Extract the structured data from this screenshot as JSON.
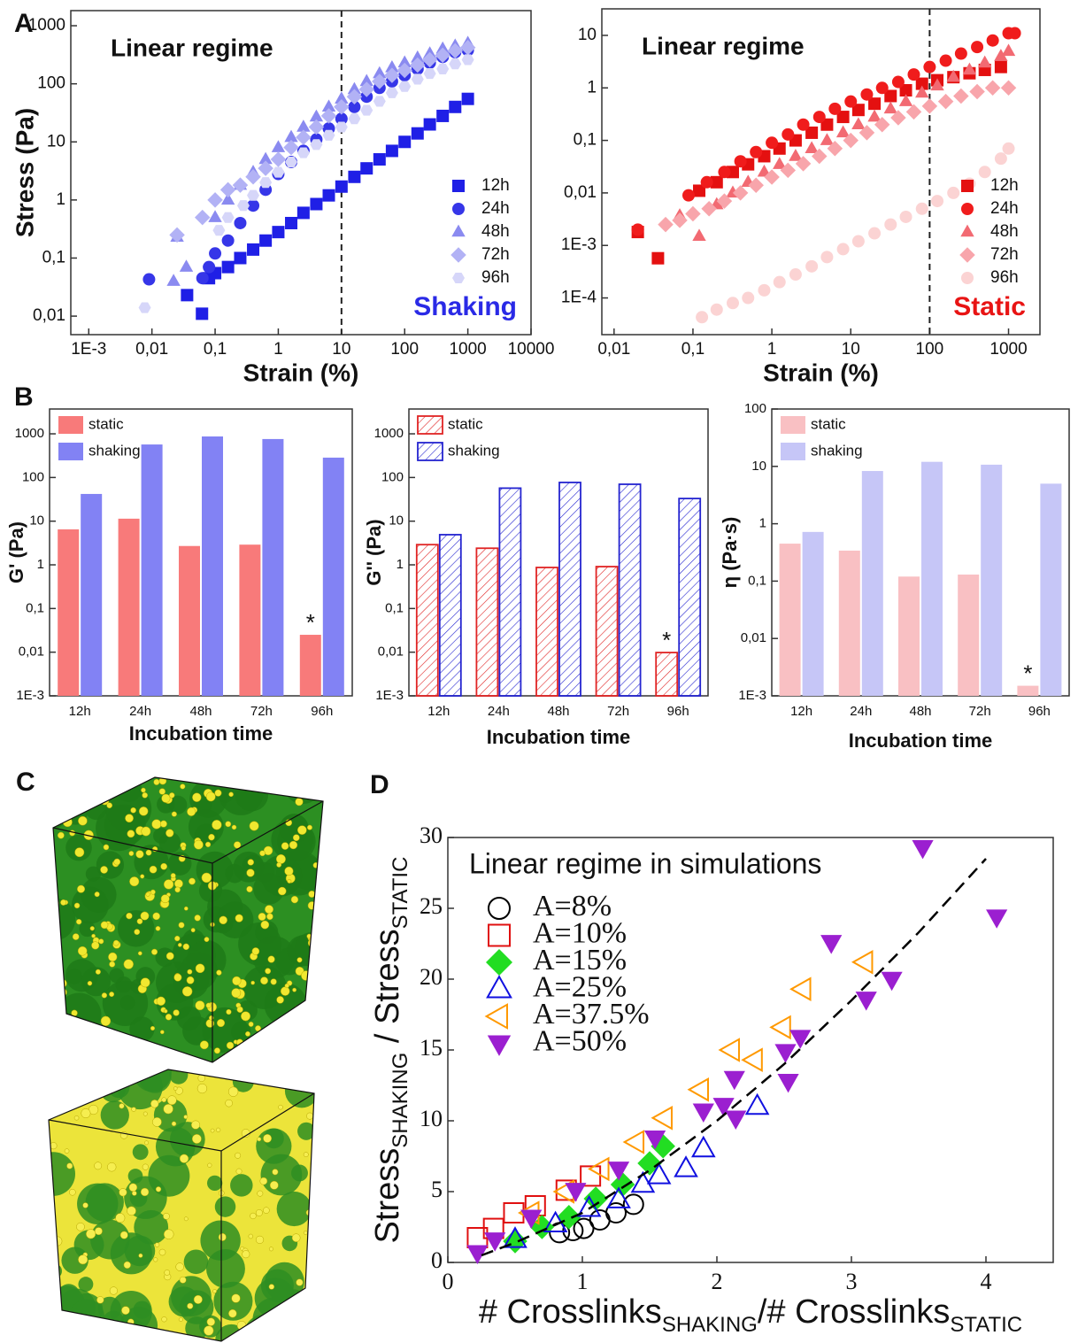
{
  "panel_labels": [
    "A",
    "B",
    "C",
    "D"
  ],
  "chart_data": [
    {
      "type": "scatter",
      "xscale": "log",
      "yscale": "log",
      "xlabel": "Strain (%)",
      "ylabel": "Stress (Pa)",
      "xlim": [
        0.00052,
        10000
      ],
      "ylim": [
        0.0048,
        1820
      ],
      "xticks": [
        {
          "value": 0.001,
          "label": "1E-3"
        },
        {
          "value": 0.01,
          "label": "0,01"
        },
        {
          "value": 0.1,
          "label": "0,1"
        },
        1,
        10,
        100,
        1000,
        10000
      ],
      "yticks": [
        {
          "value": 0.01,
          "label": "0,01"
        },
        {
          "value": 0.1,
          "label": "0,1"
        },
        1,
        10,
        100,
        1000
      ],
      "reference_line": 10,
      "legend": "lower right",
      "annotations": [
        {
          "text": "Linear regime"
        },
        {
          "text": "Shaking",
          "color": "#2a2ae6"
        }
      ],
      "series": [
        {
          "name": "12h",
          "marker": "square",
          "color": "#1f1fe6",
          "x": [
            0.036,
            0.062,
            0.08,
            0.1,
            0.16,
            0.25,
            0.4,
            0.63,
            1,
            1.6,
            2.5,
            4,
            6.3,
            10,
            16,
            25,
            40,
            63,
            100,
            160,
            250,
            400,
            630,
            1000
          ],
          "values": [
            0.023,
            0.011,
            0.045,
            0.055,
            0.07,
            0.1,
            0.14,
            0.2,
            0.28,
            0.4,
            0.6,
            0.85,
            1.2,
            1.7,
            2.5,
            3.5,
            5,
            7,
            10,
            14,
            20,
            28,
            40,
            55
          ]
        },
        {
          "name": "24h",
          "marker": "circle",
          "color": "#3636e8",
          "x": [
            0.009,
            0.063,
            0.08,
            0.1,
            0.16,
            0.25,
            0.4,
            0.63,
            1,
            1.6,
            2.5,
            4,
            6.3,
            10,
            16,
            25,
            40,
            63,
            100,
            160,
            250,
            400,
            630,
            1000
          ],
          "values": [
            0.043,
            0.045,
            0.07,
            0.12,
            0.2,
            0.4,
            0.8,
            1.5,
            2.8,
            4.5,
            7,
            11,
            17,
            25,
            40,
            60,
            85,
            110,
            140,
            180,
            230,
            290,
            350,
            380
          ]
        },
        {
          "name": "48h",
          "marker": "triangle",
          "color": "#8a8af0",
          "x": [
            0.022,
            0.025,
            0.035,
            0.1,
            0.16,
            0.25,
            0.4,
            0.63,
            1,
            1.6,
            2.5,
            4,
            6.3,
            10,
            16,
            25,
            40,
            63,
            100,
            160,
            250,
            400,
            630,
            1000
          ],
          "values": [
            0.04,
            0.23,
            0.07,
            0.5,
            1,
            1.8,
            3,
            5,
            8,
            12,
            18,
            27,
            40,
            55,
            80,
            110,
            150,
            190,
            230,
            280,
            330,
            400,
            450,
            500
          ]
        },
        {
          "name": "72h",
          "marker": "diamond",
          "color": "#b2b2f5",
          "x": [
            0.025,
            0.063,
            0.1,
            0.16,
            0.25,
            0.4,
            0.63,
            1,
            1.6,
            2.5,
            4,
            6.3,
            10,
            16,
            25,
            40,
            63,
            100,
            160,
            250,
            400,
            630,
            1000
          ],
          "values": [
            0.25,
            0.5,
            1,
            1.5,
            1.8,
            2.5,
            3.5,
            5,
            8,
            12,
            18,
            28,
            40,
            60,
            80,
            110,
            140,
            170,
            210,
            260,
            310,
            370,
            420
          ]
        },
        {
          "name": "96h",
          "marker": "hexagon",
          "color": "#d6d6f9",
          "x": [
            0.0077,
            0.115,
            0.16,
            0.28,
            0.4,
            0.63,
            1,
            1.6,
            2.5,
            4,
            6.3,
            10,
            16,
            25,
            40,
            63,
            100,
            160,
            250,
            400,
            630,
            1000
          ],
          "values": [
            0.014,
            0.3,
            0.5,
            0.8,
            1.2,
            2,
            3,
            4.5,
            6.5,
            9,
            13,
            18,
            25,
            35,
            50,
            70,
            90,
            120,
            150,
            180,
            220,
            260
          ]
        }
      ]
    },
    {
      "type": "scatter",
      "xscale": "log",
      "yscale": "log",
      "xlabel": "Strain (%)",
      "xlim": [
        0.007,
        2500
      ],
      "ylim": [
        2e-05,
        32
      ],
      "xticks": [
        {
          "value": 0.01,
          "label": "0,01"
        },
        {
          "value": 0.1,
          "label": "0,1"
        },
        1,
        10,
        100,
        1000
      ],
      "yticks": [
        {
          "value": 0.0001,
          "label": "1E-4"
        },
        {
          "value": 0.001,
          "label": "1E-3"
        },
        {
          "value": 0.01,
          "label": "0,01"
        },
        {
          "value": 0.1,
          "label": "0,1"
        },
        1,
        10
      ],
      "reference_line": 100,
      "legend": "lower right",
      "annotations": [
        {
          "text": "Linear regime"
        },
        {
          "text": "Static",
          "color": "#e81414"
        }
      ],
      "series": [
        {
          "name": "12h",
          "marker": "square",
          "color": "#e41010",
          "x": [
            0.02,
            0.036,
            0.12,
            0.2,
            0.32,
            0.5,
            0.8,
            1.25,
            2,
            3.2,
            5,
            8,
            12.5,
            20,
            32,
            50,
            80,
            125,
            200,
            320,
            500,
            800
          ],
          "values": [
            0.0018,
            0.00057,
            0.011,
            0.016,
            0.025,
            0.035,
            0.05,
            0.07,
            0.1,
            0.14,
            0.2,
            0.28,
            0.38,
            0.5,
            0.7,
            0.9,
            1.2,
            1.4,
            1.6,
            1.9,
            2.2,
            2.5
          ]
        },
        {
          "name": "24h",
          "marker": "circle",
          "color": "#f01c1c",
          "x": [
            0.02,
            0.088,
            0.15,
            0.25,
            0.4,
            0.63,
            1,
            1.6,
            2.5,
            4,
            6.3,
            10,
            16,
            25,
            40,
            63,
            100,
            160,
            250,
            400,
            630,
            1000,
            1200
          ],
          "values": [
            0.002,
            0.009,
            0.016,
            0.025,
            0.04,
            0.06,
            0.09,
            0.13,
            0.2,
            0.28,
            0.4,
            0.55,
            0.75,
            1,
            1.3,
            1.8,
            2.5,
            3.3,
            4.5,
            6,
            8,
            11,
            11
          ]
        },
        {
          "name": "48h",
          "marker": "triangle",
          "color": "#f26a72",
          "x": [
            0.068,
            0.12,
            0.2,
            0.32,
            0.5,
            0.8,
            1.25,
            2,
            3.2,
            5,
            8,
            12.5,
            20,
            32,
            50,
            80,
            125,
            200,
            320,
            500,
            800,
            1000
          ],
          "values": [
            0.0037,
            0.0015,
            0.006,
            0.01,
            0.016,
            0.025,
            0.035,
            0.05,
            0.07,
            0.1,
            0.14,
            0.2,
            0.28,
            0.4,
            0.55,
            0.8,
            1.1,
            1.6,
            2.2,
            3,
            4,
            5
          ]
        },
        {
          "name": "72h",
          "marker": "diamond",
          "color": "#f8a5ab",
          "x": [
            0.045,
            0.068,
            0.1,
            0.16,
            0.25,
            0.4,
            0.63,
            1,
            1.6,
            2.5,
            4,
            6.3,
            10,
            16,
            25,
            40,
            63,
            100,
            160,
            250,
            400,
            630,
            1000
          ],
          "values": [
            0.0025,
            0.003,
            0.004,
            0.005,
            0.007,
            0.01,
            0.014,
            0.02,
            0.027,
            0.036,
            0.05,
            0.07,
            0.1,
            0.14,
            0.2,
            0.27,
            0.35,
            0.45,
            0.55,
            0.7,
            0.85,
            1,
            1
          ]
        },
        {
          "name": "96h",
          "marker": "circle",
          "color": "#fbd3d3",
          "x": [
            0.13,
            0.2,
            0.32,
            0.5,
            0.8,
            1.25,
            2,
            3.2,
            5,
            8,
            12.5,
            20,
            32,
            50,
            80,
            125,
            200,
            320,
            500,
            800,
            1000
          ],
          "values": [
            4.3e-05,
            6e-05,
            8e-05,
            0.0001,
            0.00014,
            0.0002,
            0.00028,
            0.0004,
            0.0006,
            0.00085,
            0.0012,
            0.0017,
            0.0025,
            0.0035,
            0.005,
            0.007,
            0.01,
            0.015,
            0.025,
            0.045,
            0.07
          ]
        }
      ]
    },
    {
      "type": "bar",
      "yscale": "log",
      "xlabel": "Incubation time",
      "ylabel": "G' (Pa)",
      "ylim": [
        0.001,
        3700
      ],
      "legend": "upper left",
      "yticks": [
        {
          "value": 0.001,
          "label": "1E-3"
        },
        {
          "value": 0.01,
          "label": "0,01"
        },
        {
          "value": 0.1,
          "label": "0,1"
        },
        1,
        10,
        100,
        1000
      ],
      "categories": [
        "12h",
        "24h",
        "48h",
        "72h",
        "96h"
      ],
      "annotations": [
        {
          "text": "*"
        }
      ],
      "series": [
        {
          "name": "static",
          "color": "#f87a7a",
          "values": [
            6.5,
            11.4,
            2.7,
            2.9,
            0.025
          ]
        },
        {
          "name": "shaking",
          "color": "#8282f4",
          "values": [
            42,
            570,
            870,
            760,
            285
          ]
        }
      ]
    },
    {
      "type": "bar",
      "yscale": "log",
      "xlabel": "Incubation time",
      "ylabel": "G'' (Pa)",
      "hatch": true,
      "ylim": [
        0.001,
        3700
      ],
      "legend": "upper left",
      "yticks": [
        {
          "value": 0.001,
          "label": "1E-3"
        },
        {
          "value": 0.01,
          "label": "0,01"
        },
        {
          "value": 0.1,
          "label": "0,1"
        },
        1,
        10,
        100,
        1000
      ],
      "categories": [
        "12h",
        "24h",
        "48h",
        "72h",
        "96h"
      ],
      "annotations": [
        {
          "text": "*"
        }
      ],
      "series": [
        {
          "name": "static",
          "color": "#e02424",
          "values": [
            2.9,
            2.4,
            0.87,
            0.91,
            0.0098
          ]
        },
        {
          "name": "shaking",
          "color": "#2424d0",
          "values": [
            4.9,
            57,
            77,
            70,
            33
          ]
        }
      ]
    },
    {
      "type": "bar",
      "yscale": "log",
      "xlabel": "Incubation time",
      "ylabel": "η (Pa·s)",
      "ylim": [
        0.001,
        100
      ],
      "legend": "upper left",
      "yticks": [
        {
          "value": 0.001,
          "label": "1E-3"
        },
        {
          "value": 0.01,
          "label": "0,01"
        },
        {
          "value": 0.1,
          "label": "0,1"
        },
        1,
        10,
        100
      ],
      "categories": [
        "12h",
        "24h",
        "48h",
        "72h",
        "96h"
      ],
      "annotations": [
        {
          "text": "*"
        }
      ],
      "series": [
        {
          "name": "static",
          "color": "#f9c0c3",
          "values": [
            0.45,
            0.34,
            0.12,
            0.13,
            0.0015
          ]
        },
        {
          "name": "shaking",
          "color": "#c6c6f7",
          "values": [
            0.72,
            8.3,
            12,
            10.7,
            5
          ]
        }
      ]
    },
    {
      "type": "scatter",
      "legend": "upper left",
      "legend_title": "Linear regime in simulations",
      "xlabel": [
        {
          "text": "# Crosslinks"
        },
        {
          "text": "SHAKING",
          "sub": true
        },
        {
          "text": "/# Crosslinks"
        },
        {
          "text": "STATIC",
          "sub": true
        }
      ],
      "ylabel": [
        {
          "text": "Stress"
        },
        {
          "text": "SHAKING",
          "sub": true
        },
        {
          "text": " / Stress"
        },
        {
          "text": "STATIC",
          "sub": true
        }
      ],
      "xlim": [
        0,
        4.5
      ],
      "ylim": [
        0,
        30
      ],
      "xticks": [
        0,
        1,
        2,
        3,
        4
      ],
      "yticks": [
        0,
        5,
        10,
        15,
        20,
        25,
        30
      ],
      "fit": {
        "x": [
          0.25,
          0.5,
          1,
          1.5,
          2,
          2.5,
          3,
          3.5,
          4
        ],
        "y": [
          0.5,
          1.4,
          3.5,
          6.5,
          10,
          14,
          18.5,
          23.3,
          28.5
        ]
      },
      "series": [
        {
          "name": "A=8%",
          "marker": "circle",
          "hollow": true,
          "color": "#000000",
          "x": [
            0.83,
            0.93,
            1.01,
            1.13,
            1.25,
            1.38
          ],
          "values": [
            2.1,
            2.25,
            2.4,
            3,
            3.5,
            4.1
          ]
        },
        {
          "name": "A=10%",
          "marker": "square",
          "hollow": true,
          "color": "#e01010",
          "x": [
            0.22,
            0.34,
            0.49,
            0.65,
            0.88,
            1.06
          ],
          "values": [
            1.75,
            2.4,
            3.5,
            4,
            5.1,
            6.1
          ]
        },
        {
          "name": "A=15%",
          "marker": "diamond",
          "color": "#22dd22",
          "x": [
            0.5,
            0.7,
            0.9,
            1.1,
            1.3,
            1.5,
            1.6
          ],
          "values": [
            1.5,
            2.5,
            3.2,
            4.5,
            5.5,
            7,
            8.2
          ]
        },
        {
          "name": "A=25%",
          "marker": "triangle",
          "hollow": true,
          "color": "#1010e0",
          "x": [
            0.5,
            0.8,
            1.05,
            1.27,
            1.45,
            1.57,
            1.77,
            1.9,
            2.3
          ],
          "values": [
            1.6,
            2.7,
            3.8,
            4.4,
            5.5,
            6.1,
            6.6,
            8,
            11
          ]
        },
        {
          "name": "A=37.5%",
          "marker": "triangle-left",
          "hollow": true,
          "color": "#ff9900",
          "x": [
            0.62,
            0.88,
            1.14,
            1.4,
            1.61,
            1.88,
            2.11,
            2.28,
            2.49,
            2.64,
            3.1
          ],
          "values": [
            3.5,
            5,
            6.6,
            8.5,
            10.2,
            12.2,
            15,
            14.3,
            16.6,
            19.3,
            21.2
          ]
        },
        {
          "name": "A=50%",
          "marker": "triangle-down",
          "color": "#9b1fd0",
          "x": [
            0.22,
            0.35,
            0.62,
            0.95,
            1.27,
            1.54,
            1.9,
            2.05,
            2.13,
            2.14,
            2.51,
            2.53,
            2.62,
            2.85,
            3.11,
            3.3,
            3.53,
            4.08
          ],
          "values": [
            0.7,
            1.6,
            3.2,
            5.1,
            6.6,
            8.8,
            10.7,
            11.1,
            13,
            10.2,
            14.9,
            12.8,
            15.9,
            22.6,
            18.6,
            20,
            29.3,
            24.4
          ]
        }
      ]
    }
  ]
}
